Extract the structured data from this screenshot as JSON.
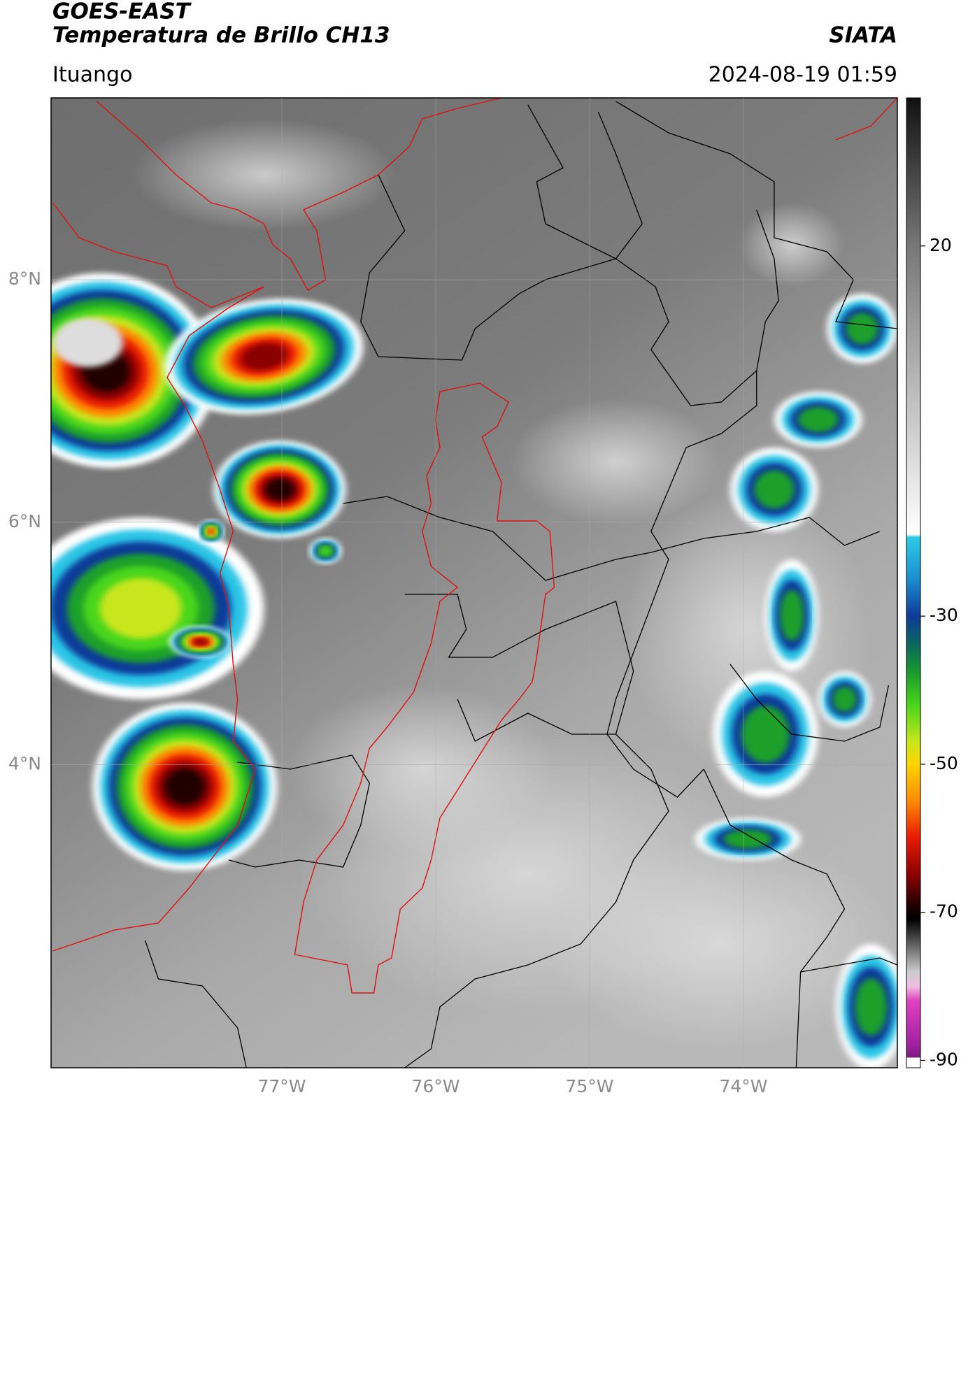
{
  "header": {
    "satellite": "GOES-EAST",
    "product": "Temperatura de Brillo CH13",
    "agency": "SIATA",
    "location": "Ituango",
    "datetime": "2024-08-19 01:59"
  },
  "map": {
    "xlim": [
      -78.5,
      -73
    ],
    "ylim": [
      1.5,
      9.5
    ],
    "xticks": [
      {
        "value": -77,
        "label": "77°W"
      },
      {
        "value": -76,
        "label": "76°W"
      },
      {
        "value": -75,
        "label": "75°W"
      },
      {
        "value": -74,
        "label": "74°W"
      }
    ],
    "yticks": [
      {
        "value": 8,
        "label": "8°N"
      },
      {
        "value": 6,
        "label": "6°N"
      },
      {
        "value": 4,
        "label": "4°N"
      }
    ]
  },
  "colorbar": {
    "lim": [
      -91,
      40
    ],
    "ticks": [
      20,
      -30,
      -50,
      -70,
      -90
    ]
  }
}
